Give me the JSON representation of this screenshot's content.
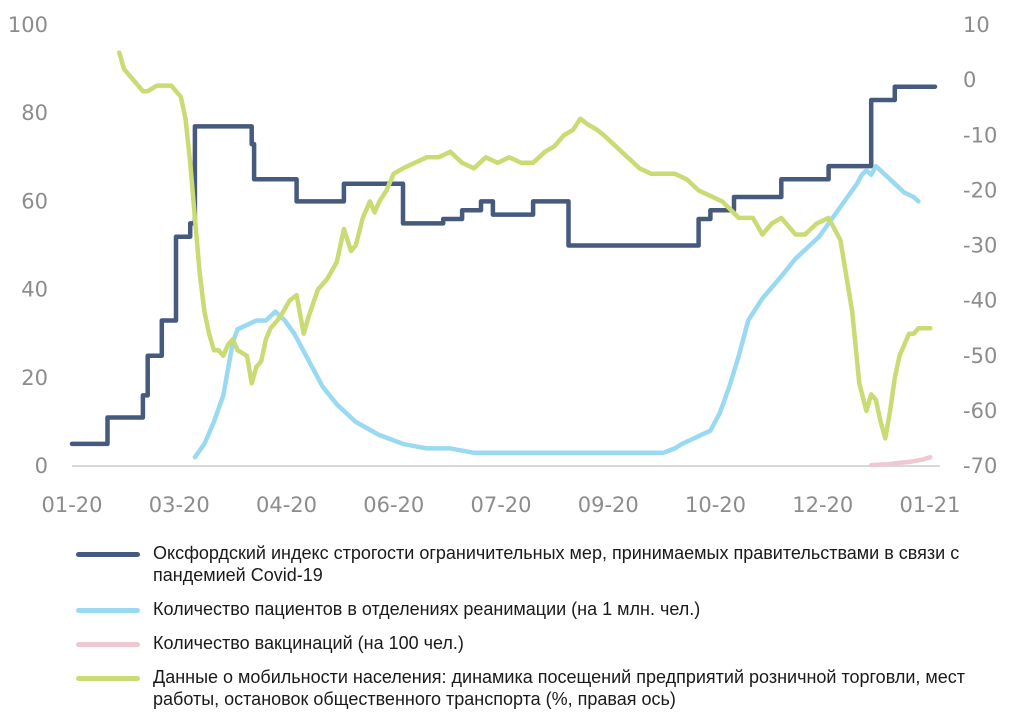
{
  "chart_data": {
    "type": "line",
    "x_ticks": [
      "01-20",
      "03-20",
      "04-20",
      "06-20",
      "07-20",
      "09-20",
      "10-20",
      "12-20",
      "01-21"
    ],
    "xlim": [
      0,
      365
    ],
    "y_left": {
      "ticks": [
        "0",
        "20",
        "40",
        "60",
        "80",
        "100"
      ],
      "ylim": [
        0,
        100
      ]
    },
    "y_right": {
      "ticks": [
        "10",
        "0",
        "-10",
        "-20",
        "-30",
        "-40",
        "-50",
        "-60",
        "-70"
      ],
      "ylim": [
        -70,
        10
      ]
    },
    "grid": false,
    "legend_placement": "bottom",
    "series": [
      {
        "name": "Оксфордский индекс строгости ограничительных мер, принимаемых правительствами в связи с пандемией Covid-19",
        "axis": "left",
        "color": "#465a7d",
        "step": true,
        "x": [
          0,
          15,
          30,
          32,
          33,
          38,
          44,
          50,
          52,
          53,
          55,
          75,
          76,
          77,
          80,
          95,
          97,
          105,
          112,
          115,
          130,
          140,
          145,
          157,
          165,
          173,
          178,
          195,
          205,
          210,
          232,
          260,
          265,
          270,
          280,
          282,
          300,
          320,
          325,
          338,
          348,
          365
        ],
        "y": [
          5,
          11,
          16,
          25,
          25,
          33,
          52,
          55,
          77,
          77,
          77,
          77,
          73,
          65,
          65,
          60,
          60,
          60,
          60,
          64,
          64,
          55,
          55,
          56,
          58,
          60,
          57,
          60,
          60,
          50,
          50,
          50,
          56,
          58,
          61,
          61,
          65,
          68,
          68,
          83,
          86,
          86
        ]
      },
      {
        "name": "Количество пациентов в отделениях реанимации (на 1 млн. чел.)",
        "axis": "left",
        "color": "#99d9f2",
        "x": [
          52,
          56,
          60,
          64,
          66,
          68,
          70,
          74,
          78,
          82,
          86,
          90,
          94,
          98,
          102,
          106,
          112,
          120,
          130,
          140,
          150,
          160,
          170,
          180,
          190,
          200,
          210,
          220,
          230,
          240,
          250,
          255,
          258,
          262,
          266,
          270,
          274,
          278,
          282,
          286,
          292,
          300,
          306,
          312,
          316,
          320,
          324,
          328,
          332,
          334,
          336,
          338,
          340,
          344,
          348,
          352,
          356,
          358
        ],
        "y": [
          2,
          5,
          10,
          16,
          22,
          28,
          31,
          32,
          33,
          33,
          35,
          33,
          30,
          26,
          22,
          18,
          14,
          10,
          7,
          5,
          4,
          4,
          3,
          3,
          3,
          3,
          3,
          3,
          3,
          3,
          3,
          4,
          5,
          6,
          7,
          8,
          12,
          18,
          25,
          33,
          38,
          43,
          47,
          50,
          52,
          55,
          58,
          61,
          64,
          66,
          67,
          66,
          68,
          66,
          64,
          62,
          61,
          60
        ]
      },
      {
        "name": "Количество вакцинаций (на 100 чел.)",
        "axis": "left",
        "color": "#f0c8d2",
        "x": [
          338,
          345,
          350,
          355,
          360,
          363
        ],
        "y": [
          0.2,
          0.4,
          0.7,
          1,
          1.5,
          2
        ]
      },
      {
        "name": "Данные о мобильности населения: динамика посещений предприятий розничной торговли, мест работы, остановок общественного транспорта (%, правая ось)",
        "axis": "right",
        "color": "#c9dc73",
        "x": [
          20,
          22,
          26,
          30,
          32,
          36,
          40,
          42,
          44,
          46,
          48,
          50,
          52,
          54,
          56,
          58,
          60,
          62,
          64,
          66,
          68,
          70,
          74,
          76,
          78,
          80,
          82,
          84,
          88,
          92,
          95,
          98,
          100,
          104,
          108,
          112,
          115,
          118,
          120,
          123,
          126,
          128,
          130,
          133,
          136,
          140,
          145,
          150,
          155,
          160,
          165,
          170,
          175,
          180,
          185,
          190,
          195,
          200,
          204,
          208,
          212,
          215,
          218,
          222,
          225,
          230,
          235,
          240,
          245,
          250,
          255,
          260,
          265,
          270,
          275,
          282,
          288,
          292,
          296,
          300,
          306,
          310,
          315,
          320,
          325,
          330,
          333,
          336,
          338,
          340,
          342,
          344,
          346,
          348,
          350,
          352,
          354,
          356,
          358,
          360,
          363
        ],
        "y": [
          5,
          2,
          0,
          -2,
          -2,
          -1,
          -1,
          -1,
          -2,
          -3,
          -7,
          -15,
          -25,
          -35,
          -42,
          -46,
          -49,
          -49,
          -50,
          -48,
          -47,
          -49,
          -50,
          -55,
          -52,
          -51,
          -47,
          -45,
          -43,
          -40,
          -39,
          -46,
          -43,
          -38,
          -36,
          -33,
          -27,
          -31,
          -30,
          -25,
          -22,
          -24,
          -22,
          -20,
          -17,
          -16,
          -15,
          -14,
          -14,
          -13,
          -15,
          -16,
          -14,
          -15,
          -14,
          -15,
          -15,
          -13,
          -12,
          -10,
          -9,
          -7,
          -8,
          -9,
          -10,
          -12,
          -14,
          -16,
          -17,
          -17,
          -17,
          -18,
          -20,
          -21,
          -22,
          -25,
          -25,
          -28,
          -26,
          -25,
          -28,
          -28,
          -26,
          -25,
          -29,
          -42,
          -55,
          -60,
          -57,
          -58,
          -62,
          -65,
          -60,
          -54,
          -50,
          -48,
          -46,
          -46,
          -45,
          -45,
          -45
        ]
      }
    ]
  }
}
